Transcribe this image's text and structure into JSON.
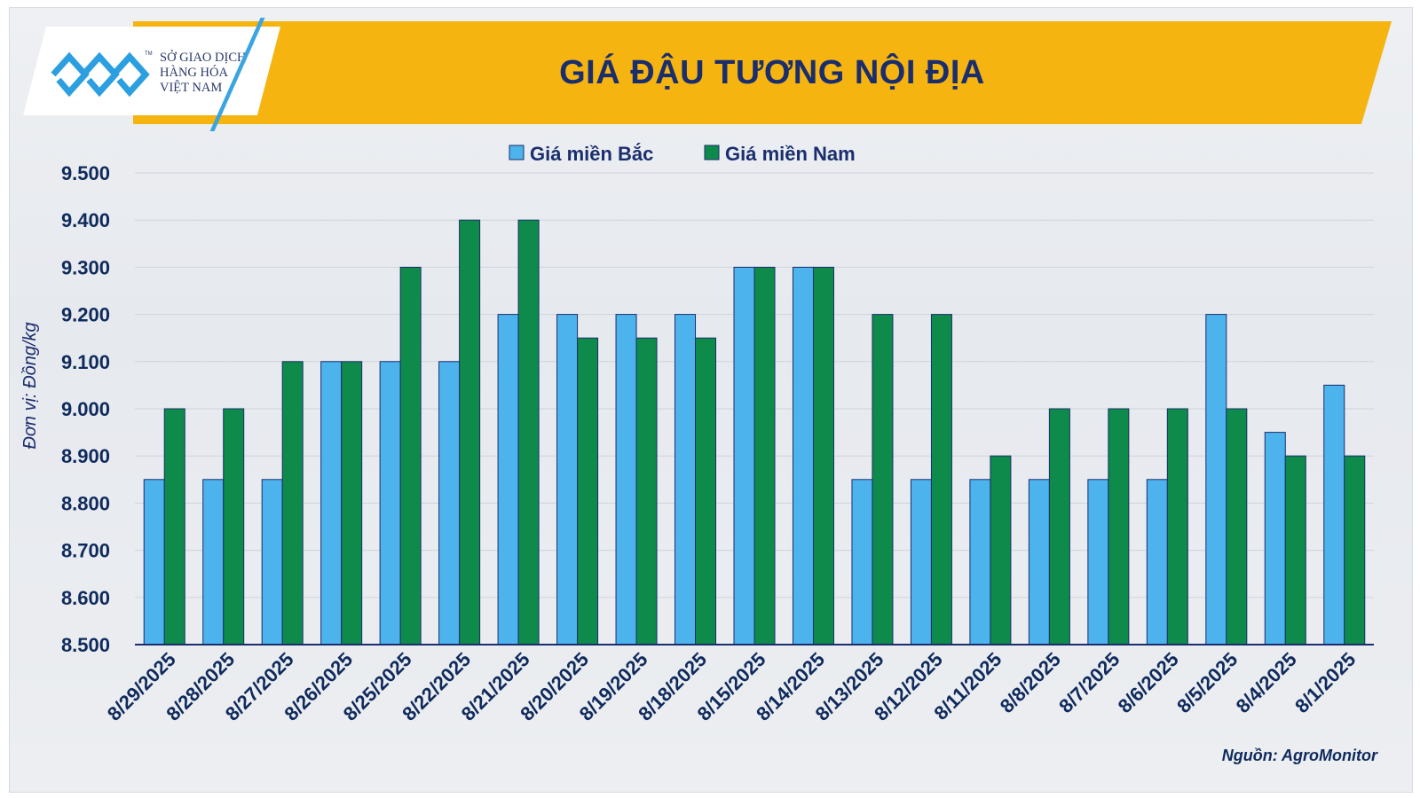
{
  "header": {
    "logo_lines": [
      "SỞ GIAO DỊCH",
      "HÀNG HÓA",
      "VIỆT NAM"
    ],
    "logo_tm": "TM",
    "title": "GIÁ ĐẬU TƯƠNG NỘI ĐỊA"
  },
  "source": "Nguồn: AgroMonitor",
  "chart_data": {
    "type": "bar",
    "title": "GIÁ ĐẬU TƯƠNG NỘI ĐỊA",
    "ylabel": "Đơn vị: Đồng/kg",
    "xlabel": "",
    "ylim": [
      8500,
      9500
    ],
    "yticks": [
      "9.500",
      "9.400",
      "9.300",
      "9.200",
      "9.100",
      "9.000",
      "8.900",
      "8.800",
      "8.700",
      "8.600",
      "8.500"
    ],
    "ytick_values": [
      9500,
      9400,
      9300,
      9200,
      9100,
      9000,
      8900,
      8800,
      8700,
      8600,
      8500
    ],
    "grid": true,
    "legend_position": "top-center",
    "categories": [
      "8/29/2025",
      "8/28/2025",
      "8/27/2025",
      "8/26/2025",
      "8/25/2025",
      "8/22/2025",
      "8/21/2025",
      "8/20/2025",
      "8/19/2025",
      "8/18/2025",
      "8/15/2025",
      "8/14/2025",
      "8/13/2025",
      "8/12/2025",
      "8/11/2025",
      "8/8/2025",
      "8/7/2025",
      "8/6/2025",
      "8/5/2025",
      "8/4/2025",
      "8/1/2025"
    ],
    "series": [
      {
        "name": "Giá miền Bắc",
        "color": "#4db3ec",
        "values": [
          8850,
          8850,
          8850,
          9100,
          9100,
          9100,
          9200,
          9200,
          9200,
          9200,
          9300,
          9300,
          8850,
          8850,
          8850,
          8850,
          8850,
          8850,
          9200,
          8950,
          9050
        ]
      },
      {
        "name": "Giá miền Nam",
        "color": "#0e8a4a",
        "values": [
          9000,
          9000,
          9100,
          9100,
          9300,
          9400,
          9400,
          9150,
          9150,
          9150,
          9300,
          9300,
          9200,
          9200,
          8900,
          9000,
          9000,
          9000,
          9000,
          8900,
          8900
        ]
      }
    ]
  }
}
